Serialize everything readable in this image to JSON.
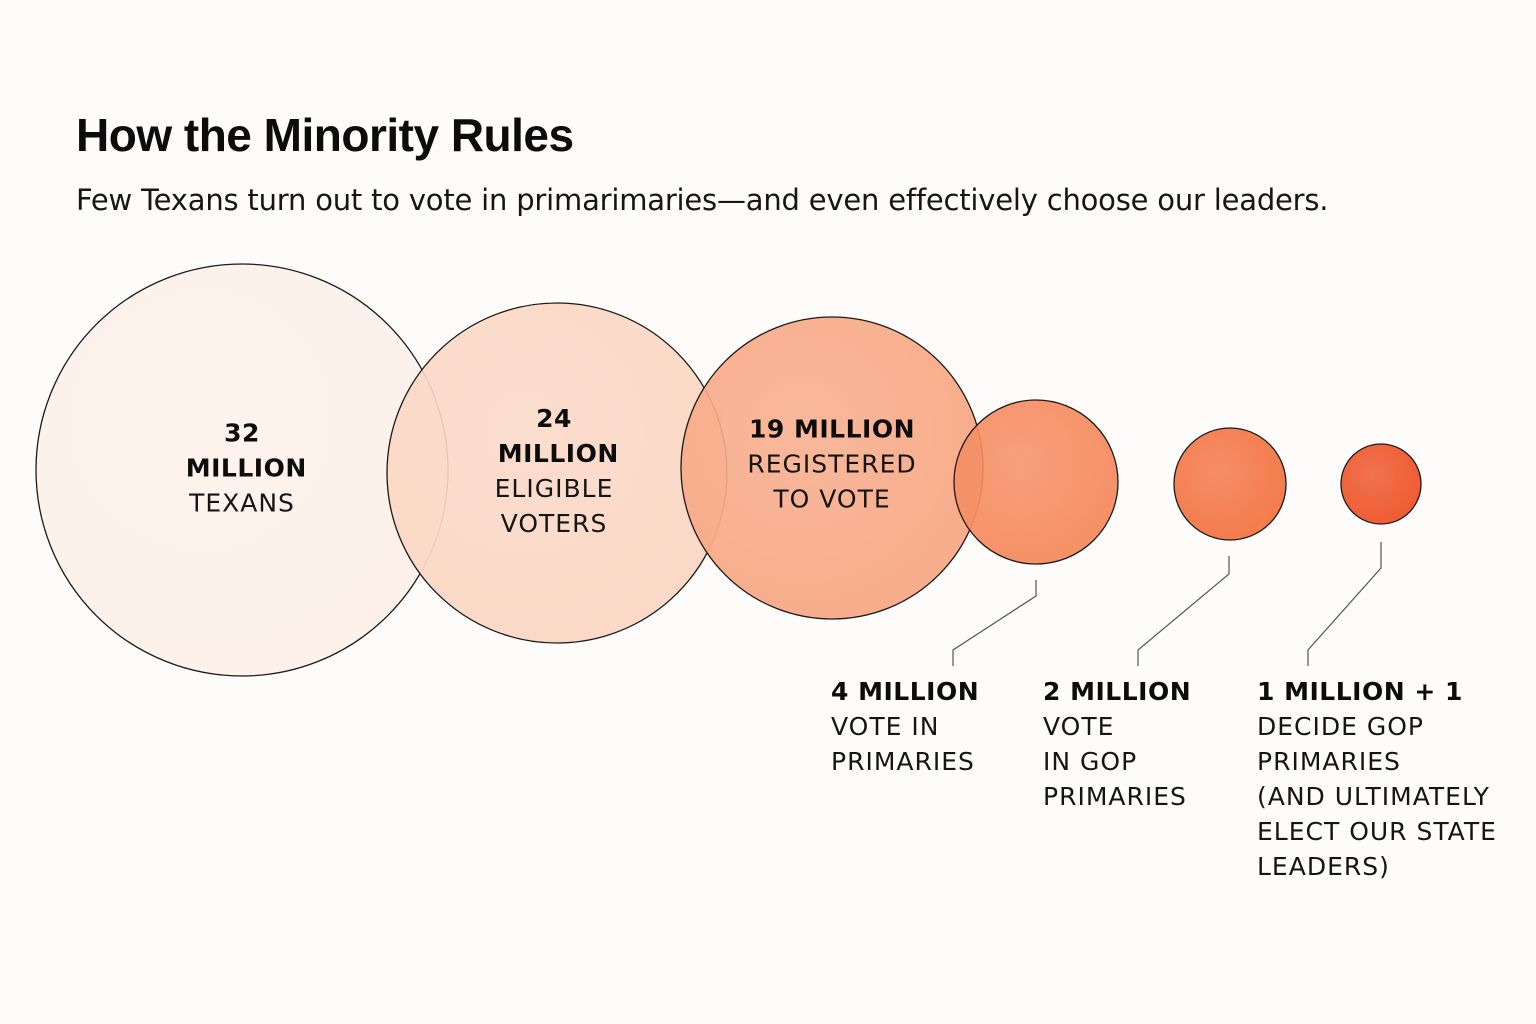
{
  "title": "How the Minority Rules",
  "subtitle": "Few Texans turn out to vote in primarimaries—and even effectively choose our leaders.",
  "chart_data": {
    "type": "bubble",
    "title": "How the Minority Rules",
    "subtitle": "Few Texans turn out to vote in primarimaries—and even effectively choose our leaders.",
    "units": "people (millions)",
    "series": [
      {
        "name": "Texans",
        "value": 32,
        "value_label": "32 MILLION",
        "label_lines": [
          "TEXANS"
        ],
        "color": "#fdf1ea",
        "label_position": "inside"
      },
      {
        "name": "Eligible voters",
        "value": 24,
        "value_label": "24 MILLION",
        "label_lines": [
          "ELIGIBLE",
          "VOTERS"
        ],
        "color": "#fbd8c6",
        "label_position": "inside"
      },
      {
        "name": "Registered to vote",
        "value": 19,
        "value_label": "19 MILLION",
        "label_lines": [
          "REGISTERED",
          "TO VOTE"
        ],
        "color": "#f8ac8a",
        "label_position": "inside"
      },
      {
        "name": "Vote in primaries",
        "value": 4,
        "value_label": "4 MILLION",
        "label_lines": [
          "VOTE IN",
          "PRIMARIES"
        ],
        "color": "#f68f65",
        "label_position": "below"
      },
      {
        "name": "Vote in GOP primaries",
        "value": 2,
        "value_label": "2 MILLION",
        "label_lines": [
          "VOTE",
          "IN GOP",
          "PRIMARIES"
        ],
        "color": "#f47a4a",
        "label_position": "below"
      },
      {
        "name": "Decide GOP primaries",
        "value": 1,
        "value_label": "1 MILLION + 1",
        "label_lines": [
          "DECIDE GOP",
          "PRIMARIES",
          "(AND ULTIMATELY",
          "ELECT OUR STATE",
          "LEADERS)"
        ],
        "color": "#ef5a30",
        "label_position": "below"
      }
    ]
  }
}
